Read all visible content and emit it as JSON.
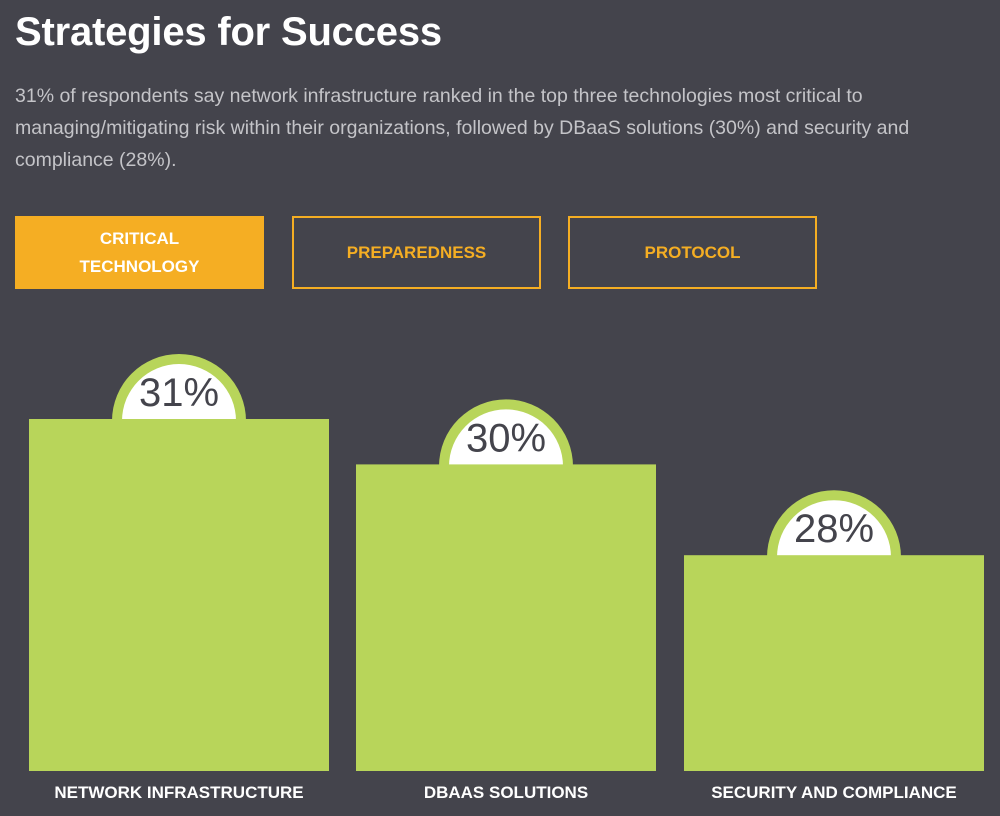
{
  "header": {
    "title": "Strategies for Success",
    "description": "31% of respondents say network infrastructure ranked in the top three technologies most critical to managing/mitigating risk within their organizations, followed by DBaaS solutions (30%) and security and compliance (28%)."
  },
  "tabs": [
    {
      "label": "CRITICAL TECHNOLOGY",
      "active": true
    },
    {
      "label": "PREPAREDNESS",
      "active": false
    },
    {
      "label": "PROTOCOL",
      "active": false
    }
  ],
  "colors": {
    "background": "#44444c",
    "accent": "#f5ae23",
    "bar": "#b8d55a",
    "badge_fill": "#ffffff",
    "badge_text": "#44444c"
  },
  "chart_data": {
    "type": "bar",
    "categories": [
      "NETWORK INFRASTRUCTURE",
      "DBAAS SOLUTIONS",
      "SECURITY AND COMPLIANCE"
    ],
    "values": [
      31,
      30,
      28
    ],
    "value_labels": [
      "31%",
      "30%",
      "28%"
    ],
    "unit": "%",
    "title": "",
    "xlabel": "",
    "ylabel": "",
    "grid": false,
    "legend": "none"
  }
}
